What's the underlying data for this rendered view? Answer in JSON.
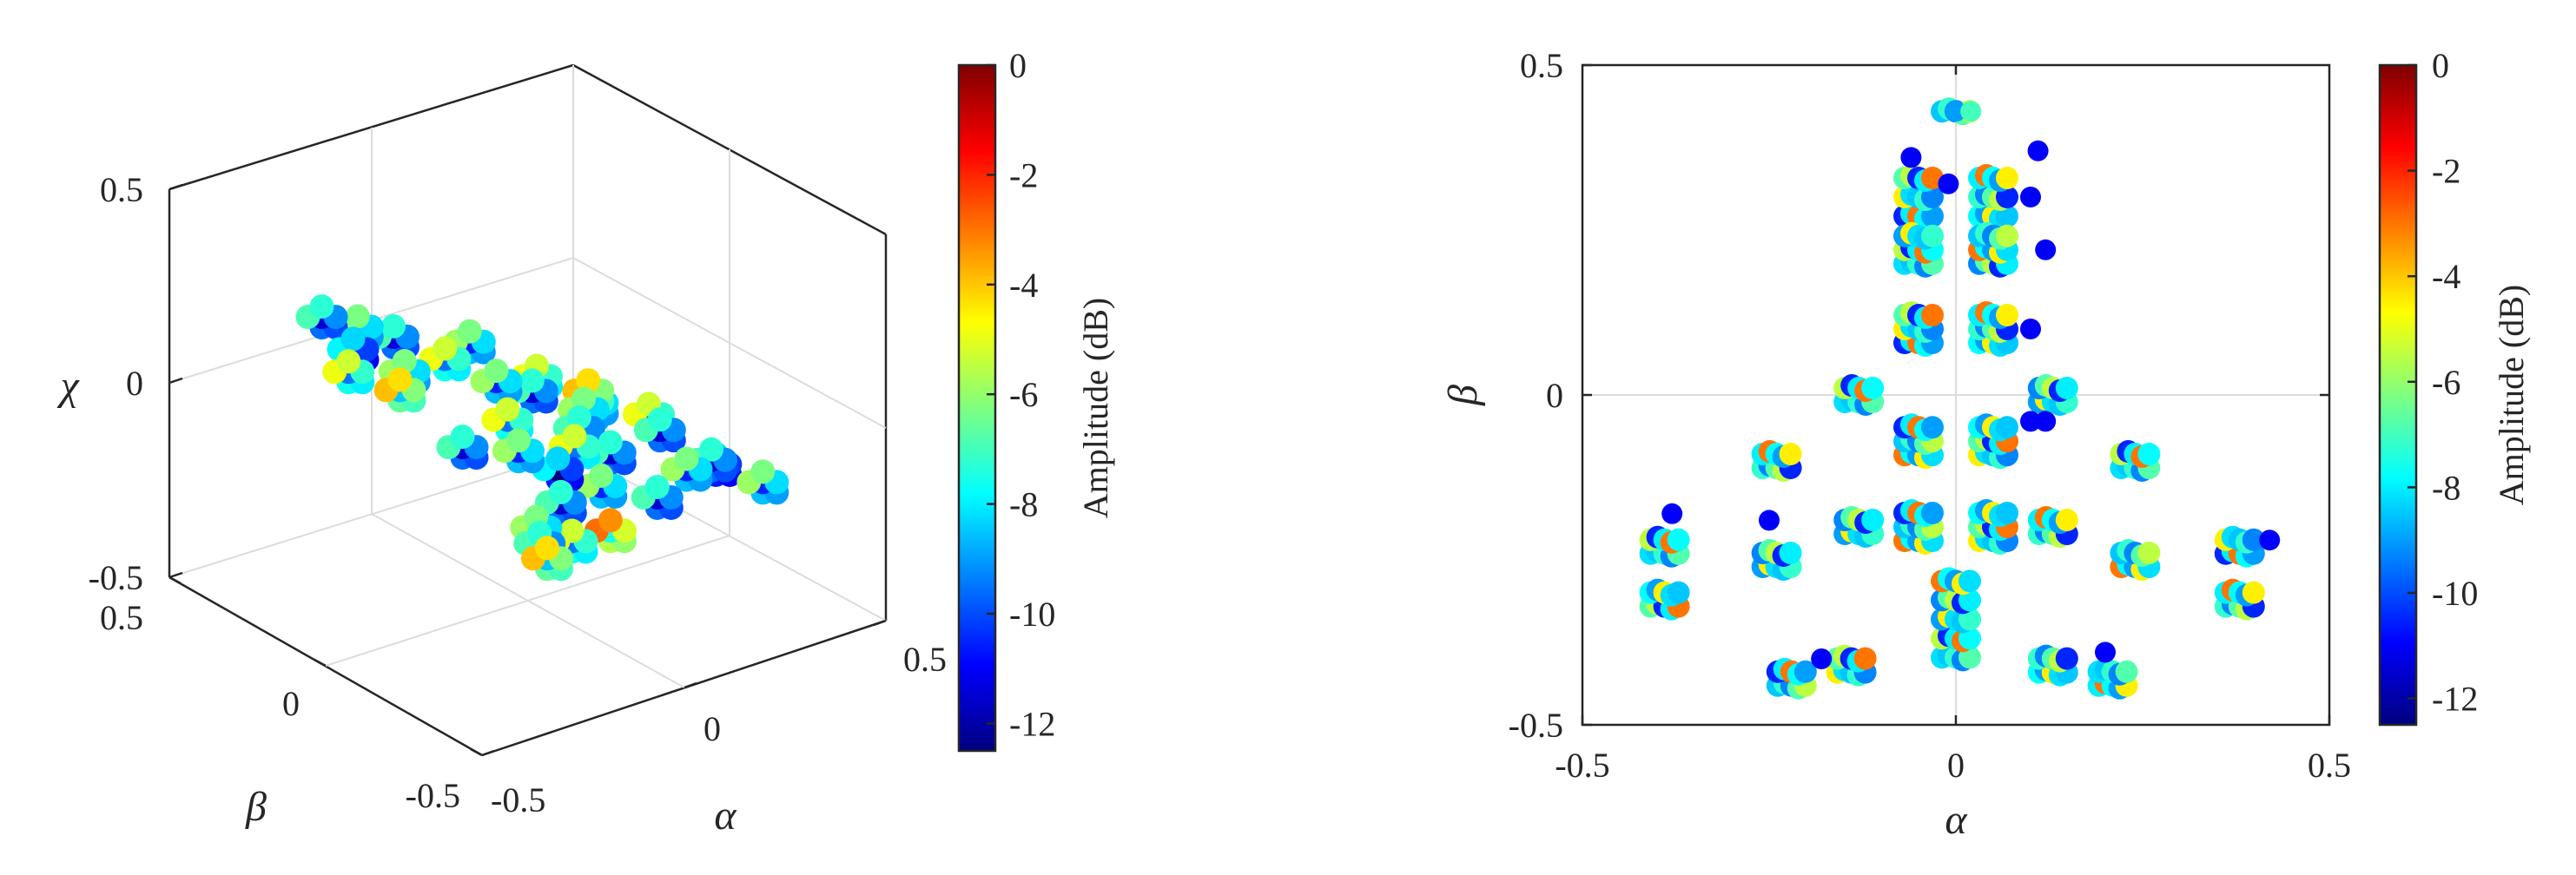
{
  "colormap": [
    "#00007f",
    "#0000ff",
    "#007fff",
    "#00ffff",
    "#7fff7f",
    "#ffff00",
    "#ff7f00",
    "#ff0000",
    "#7f0000"
  ],
  "chart_data": [
    {
      "type": "scatter",
      "projection": "3d",
      "xlabel": "α",
      "ylabel": "β",
      "zlabel": "χ",
      "xlim": [
        -0.5,
        0.5
      ],
      "ylim": [
        -0.5,
        0.5
      ],
      "zlim": [
        -0.5,
        0.5
      ],
      "xticks": [
        "-0.5",
        "0",
        "0.5"
      ],
      "yticks": [
        "-0.5",
        "0",
        "0.5"
      ],
      "zticks": [
        "-0.5",
        "0",
        "0.5"
      ],
      "grid": true,
      "colorbar": {
        "label": "Amplitude (dB)",
        "range": [
          -12.5,
          0
        ],
        "ticks": [
          "0",
          "-2",
          "-4",
          "-6",
          "-8",
          "-10",
          "-12"
        ]
      },
      "points": [
        [
          0.45,
          0.3,
          -0.1,
          -6
        ],
        [
          0.4,
          0.28,
          -0.09,
          -9
        ],
        [
          0.35,
          0.25,
          -0.08,
          -8
        ],
        [
          0.4,
          0.2,
          -0.11,
          -7
        ],
        [
          0.3,
          0.15,
          -0.07,
          -9
        ],
        [
          0.42,
          0.12,
          -0.1,
          -5
        ],
        [
          0.3,
          0.05,
          -0.06,
          -8
        ],
        [
          0.2,
          0.08,
          -0.05,
          -10
        ],
        [
          0.15,
          0.0,
          -0.04,
          -7
        ],
        [
          0.1,
          -0.05,
          -0.03,
          -9
        ],
        [
          0.05,
          -0.1,
          -0.02,
          -8
        ],
        [
          0.0,
          -0.15,
          -0.01,
          -6
        ],
        [
          0.2,
          -0.05,
          -0.05,
          -9
        ],
        [
          0.1,
          0.1,
          -0.04,
          -8
        ],
        [
          0.0,
          0.05,
          -0.02,
          -7
        ],
        [
          -0.05,
          -0.05,
          0.0,
          -9
        ],
        [
          -0.1,
          0.0,
          0.02,
          -8
        ],
        [
          -0.2,
          0.05,
          0.05,
          -7
        ],
        [
          -0.3,
          0.1,
          0.08,
          -9
        ],
        [
          -0.3,
          0.2,
          0.08,
          -10
        ],
        [
          -0.35,
          0.15,
          0.1,
          -8
        ],
        [
          -0.4,
          0.2,
          0.12,
          -9
        ],
        [
          -0.25,
          0.25,
          0.06,
          -7
        ],
        [
          -0.2,
          0.15,
          0.05,
          -8
        ],
        [
          -0.15,
          0.2,
          0.04,
          -6
        ],
        [
          0.25,
          -0.2,
          -0.12,
          -8
        ],
        [
          0.2,
          -0.3,
          -0.15,
          -9
        ],
        [
          0.3,
          -0.35,
          -0.18,
          -8
        ],
        [
          0.1,
          -0.25,
          -0.1,
          -9
        ],
        [
          0.0,
          -0.3,
          -0.12,
          -7
        ],
        [
          -0.05,
          -0.2,
          -0.08,
          -8
        ],
        [
          0.15,
          -0.35,
          -0.2,
          -10
        ],
        [
          0.35,
          -0.05,
          -0.1,
          -9
        ],
        [
          -0.1,
          -0.1,
          0.0,
          -7
        ],
        [
          -0.25,
          -0.05,
          0.04,
          -8
        ],
        [
          0.05,
          0.2,
          -0.02,
          -9
        ]
      ]
    },
    {
      "type": "scatter",
      "xlabel": "α",
      "ylabel": "β",
      "xlim": [
        -0.5,
        0.5
      ],
      "ylim": [
        -0.5,
        0.5
      ],
      "xticks": [
        "-0.5",
        "0",
        "0.5"
      ],
      "yticks": [
        "-0.5",
        "0",
        "0.5"
      ],
      "zero_lines": true,
      "colorbar": {
        "label": "Amplitude (dB)",
        "range": [
          -12.5,
          0
        ],
        "ticks": [
          "0",
          "-2",
          "-4",
          "-6",
          "-8",
          "-10",
          "-12"
        ]
      },
      "clusters": [
        [
          0.0,
          0.43,
          "v",
          1
        ],
        [
          -0.05,
          0.3,
          "v",
          3
        ],
        [
          0.05,
          0.3,
          "v",
          3
        ],
        [
          -0.05,
          0.22,
          "h",
          3
        ],
        [
          0.05,
          0.22,
          "h",
          3
        ],
        [
          -0.05,
          0.1,
          "h",
          3
        ],
        [
          0.05,
          0.1,
          "h",
          3
        ],
        [
          -0.13,
          0.0,
          "h",
          2
        ],
        [
          0.13,
          0.0,
          "h",
          2
        ],
        [
          -0.05,
          -0.07,
          "h",
          3
        ],
        [
          0.05,
          -0.07,
          "h",
          3
        ],
        [
          -0.24,
          -0.1,
          "h",
          2
        ],
        [
          0.24,
          -0.1,
          "h",
          2
        ],
        [
          -0.13,
          -0.2,
          "h",
          2
        ],
        [
          -0.05,
          -0.2,
          "h",
          3
        ],
        [
          0.05,
          -0.2,
          "h",
          3
        ],
        [
          0.13,
          -0.2,
          "h",
          2
        ],
        [
          -0.39,
          -0.23,
          "h",
          2
        ],
        [
          -0.24,
          -0.25,
          "h",
          2
        ],
        [
          0.24,
          -0.25,
          "h",
          2
        ],
        [
          0.38,
          -0.23,
          "h",
          2
        ],
        [
          -0.39,
          -0.31,
          "h",
          2
        ],
        [
          0.38,
          -0.31,
          "h",
          2
        ],
        [
          0.0,
          -0.34,
          "v",
          5
        ],
        [
          -0.22,
          -0.43,
          "h",
          2
        ],
        [
          -0.14,
          -0.41,
          "h",
          2
        ],
        [
          0.13,
          -0.41,
          "h",
          2
        ],
        [
          0.21,
          -0.43,
          "h",
          2
        ]
      ],
      "singles": [
        [
          0.0,
          0.43,
          -9
        ],
        [
          0.02,
          0.43,
          -7
        ],
        [
          -0.06,
          0.36,
          -11
        ],
        [
          -0.01,
          0.32,
          -11
        ],
        [
          0.11,
          0.37,
          -11
        ],
        [
          0.1,
          0.3,
          -11
        ],
        [
          0.12,
          0.22,
          -11
        ],
        [
          0.1,
          0.1,
          -11
        ],
        [
          0.12,
          -0.04,
          -11
        ],
        [
          0.1,
          -0.04,
          -11
        ],
        [
          0.42,
          -0.22,
          -11
        ],
        [
          -0.38,
          -0.18,
          -11
        ],
        [
          -0.25,
          -0.19,
          -11
        ],
        [
          0.2,
          -0.39,
          -11
        ],
        [
          -0.18,
          -0.4,
          -11
        ]
      ]
    }
  ]
}
